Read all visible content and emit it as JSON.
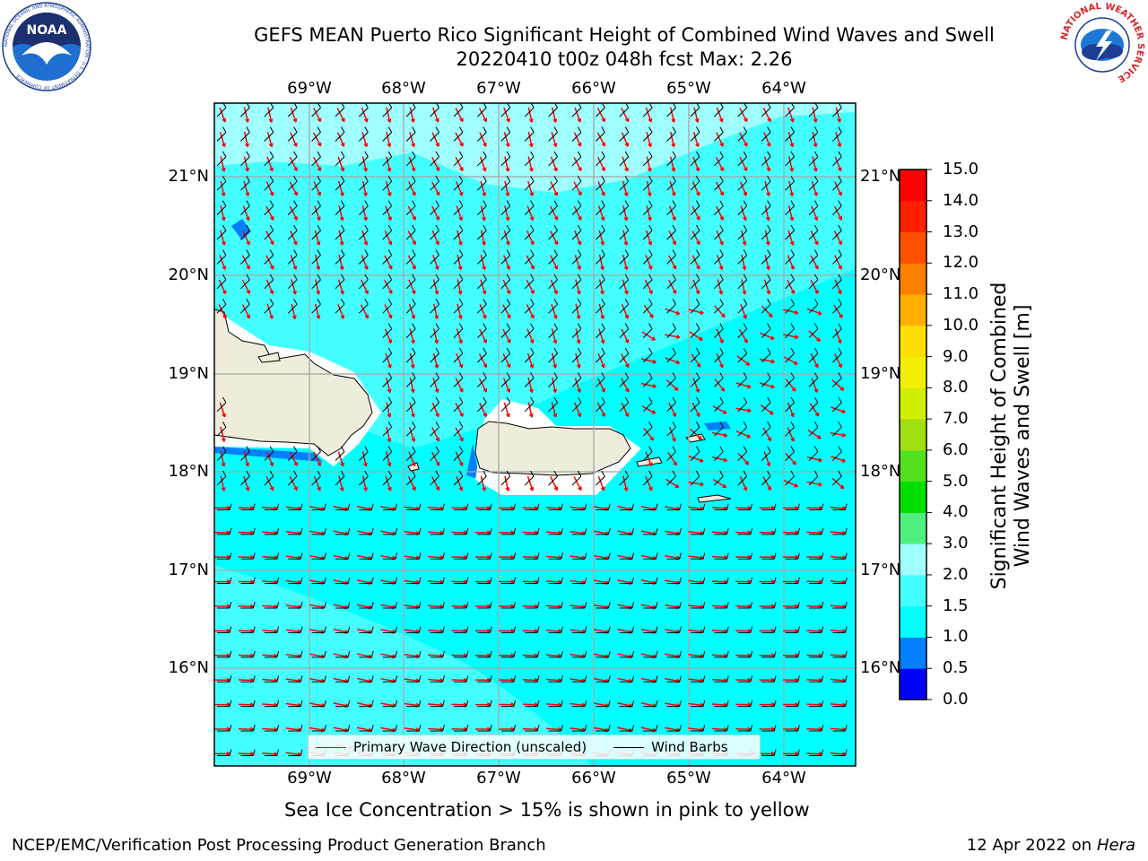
{
  "header": {
    "title_line1": "GEFS MEAN Puerto Rico Significant Height of Combined Wind Waves and Swell",
    "title_line2": "20220410 t00z 048h fcst   Max: 2.26"
  },
  "map": {
    "lon_labels": [
      "69°W",
      "68°W",
      "67°W",
      "66°W",
      "65°W",
      "64°W"
    ],
    "lat_labels": [
      "21°N",
      "20°N",
      "19°N",
      "18°N",
      "17°N",
      "16°N"
    ],
    "land_color": "#efecdb",
    "colors": {
      "cyan": "#00ffff",
      "light_cyan": "#44ffff",
      "pale_cyan": "#a0ffff",
      "blue": "#0080ff",
      "wave_arrow": "#ff0000",
      "wind_barb": "#000000"
    },
    "legend": {
      "wave": "Primary Wave Direction (unscaled)",
      "wind": "Wind Barbs"
    }
  },
  "colorbar": {
    "title_line1": "Significant Height of Combined",
    "title_line2": "Wind Waves and Swell [m]",
    "ticks": [
      "0.0",
      "0.5",
      "1.0",
      "1.5",
      "2.0",
      "3.0",
      "4.0",
      "5.0",
      "6.0",
      "7.0",
      "8.0",
      "9.0",
      "10.0",
      "11.0",
      "12.0",
      "13.0",
      "14.0",
      "15.0"
    ],
    "colors": [
      "#0000ff",
      "#0080ff",
      "#00ffff",
      "#44ffff",
      "#a0ffff",
      "#50f080",
      "#00e000",
      "#50e020",
      "#a0e010",
      "#d0f000",
      "#f0f000",
      "#ffdf00",
      "#ffb000",
      "#ff8000",
      "#ff5000",
      "#ff2000",
      "#ff0000"
    ]
  },
  "notes": {
    "sea_ice": "Sea Ice Concentration > 15% is shown in pink to yellow"
  },
  "footer": {
    "left": "NCEP/EMC/Verification Post Processing Product Generation Branch",
    "right_date": "12 Apr 2022 on ",
    "right_host": "Hera"
  },
  "logos": {
    "noaa_text": "NOAA",
    "noaa_ring": "NATIONAL OCEANIC AND ATMOSPHERIC ADMINISTRATION · U.S. DEPARTMENT OF COMMERCE",
    "nws_ring": "NATIONAL WEATHER SERVICE"
  }
}
